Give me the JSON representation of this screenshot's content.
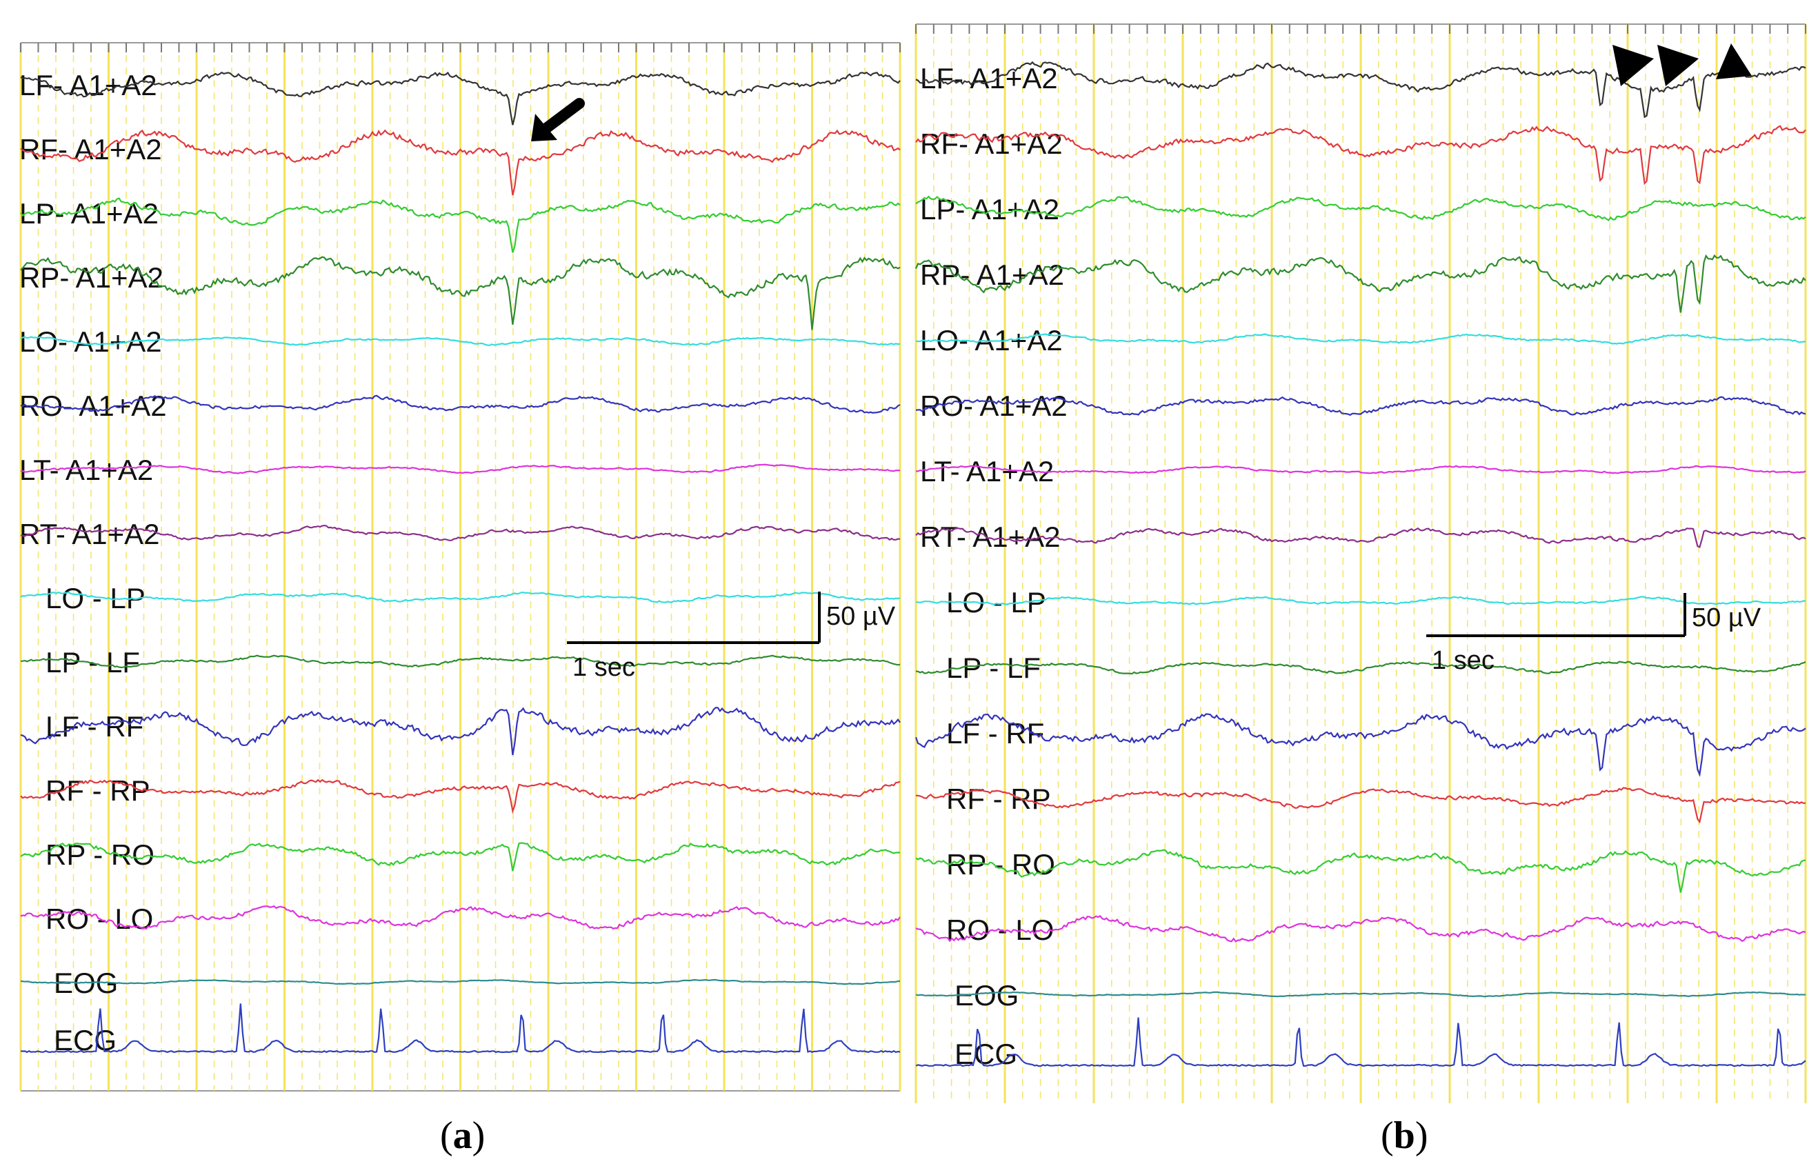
{
  "figure": {
    "panels": [
      {
        "caption": "a",
        "arrow_markers": 1,
        "scale_bar": {
          "time_label": "1 sec",
          "amplitude_label": "50 µV"
        },
        "channels": [
          {
            "label": "LF- A1+A2",
            "color": "#333333",
            "amp": 18,
            "seed": 1,
            "spikes": [
              0.56
            ]
          },
          {
            "label": "RF- A1+A2",
            "color": "#e0393e",
            "amp": 24,
            "seed": 2,
            "spikes": [
              0.56
            ]
          },
          {
            "label": "LP- A1+A2",
            "color": "#33cc33",
            "amp": 18,
            "seed": 3,
            "spikes": [
              0.56
            ]
          },
          {
            "label": "RP- A1+A2",
            "color": "#2e8b2e",
            "amp": 28,
            "seed": 4,
            "spikes": [
              0.56,
              0.9
            ]
          },
          {
            "label": "LO- A1+A2",
            "color": "#33dddd",
            "amp": 6,
            "seed": 5,
            "spikes": []
          },
          {
            "label": "RO- A1+A2",
            "color": "#3333bb",
            "amp": 12,
            "seed": 6,
            "spikes": []
          },
          {
            "label": "LT- A1+A2",
            "color": "#dd33dd",
            "amp": 6,
            "seed": 7,
            "spikes": []
          },
          {
            "label": "RT- A1+A2",
            "color": "#8a2e8a",
            "amp": 10,
            "seed": 8,
            "spikes": []
          },
          {
            "label": "LO - LP",
            "color": "#33dddd",
            "amp": 7,
            "seed": 9,
            "spikes": []
          },
          {
            "label": "LP - LF",
            "color": "#2e8b2e",
            "amp": 8,
            "seed": 10,
            "spikes": []
          },
          {
            "label": "LF - RF",
            "color": "#3333bb",
            "amp": 26,
            "seed": 11,
            "spikes": [
              0.56
            ]
          },
          {
            "label": "RF - RP",
            "color": "#e0393e",
            "amp": 14,
            "seed": 12,
            "spikes": [
              0.56
            ]
          },
          {
            "label": "RP - RO",
            "color": "#33cc33",
            "amp": 16,
            "seed": 13,
            "spikes": [
              0.56
            ]
          },
          {
            "label": "RO - LO",
            "color": "#dd33dd",
            "amp": 16,
            "seed": 14,
            "spikes": []
          },
          {
            "label": "EOG",
            "color": "#2e8b8b",
            "amp": 3,
            "seed": 15,
            "spikes": []
          },
          {
            "label": "ECG",
            "color": "#2e3fbf",
            "amp": 0,
            "seed": 16,
            "ecg": true,
            "spikes": []
          }
        ]
      },
      {
        "caption": "b",
        "arrow_markers": 3,
        "scale_bar": {
          "time_label": "1 sec",
          "amplitude_label": "50 µV"
        },
        "channels": [
          {
            "label": "LF- A1+A2",
            "color": "#333333",
            "amp": 20,
            "seed": 21,
            "spikes": [
              0.77,
              0.82,
              0.88
            ]
          },
          {
            "label": "RF- A1+A2",
            "color": "#e0393e",
            "amp": 22,
            "seed": 22,
            "spikes": [
              0.77,
              0.82,
              0.88
            ]
          },
          {
            "label": "LP- A1+A2",
            "color": "#33cc33",
            "amp": 16,
            "seed": 23,
            "spikes": []
          },
          {
            "label": "RP- A1+A2",
            "color": "#2e8b2e",
            "amp": 26,
            "seed": 24,
            "spikes": [
              0.86,
              0.88
            ]
          },
          {
            "label": "LO- A1+A2",
            "color": "#33dddd",
            "amp": 7,
            "seed": 25,
            "spikes": []
          },
          {
            "label": "RO- A1+A2",
            "color": "#3333bb",
            "amp": 14,
            "seed": 26,
            "spikes": []
          },
          {
            "label": "LT- A1+A2",
            "color": "#dd33dd",
            "amp": 6,
            "seed": 27,
            "spikes": []
          },
          {
            "label": "RT- A1+A2",
            "color": "#8a2e8a",
            "amp": 12,
            "seed": 28,
            "spikes": [
              0.88
            ]
          },
          {
            "label": "LO - LP",
            "color": "#33dddd",
            "amp": 6,
            "seed": 29,
            "spikes": []
          },
          {
            "label": "LP - LF",
            "color": "#2e8b2e",
            "amp": 9,
            "seed": 30,
            "spikes": []
          },
          {
            "label": "LF - RF",
            "color": "#3333bb",
            "amp": 26,
            "seed": 31,
            "spikes": [
              0.77,
              0.88
            ]
          },
          {
            "label": "RF - RP",
            "color": "#e0393e",
            "amp": 14,
            "seed": 32,
            "spikes": [
              0.88
            ]
          },
          {
            "label": "RP - RO",
            "color": "#33cc33",
            "amp": 18,
            "seed": 33,
            "spikes": [
              0.86
            ]
          },
          {
            "label": "RO - LO",
            "color": "#dd33dd",
            "amp": 18,
            "seed": 34,
            "spikes": []
          },
          {
            "label": "EOG",
            "color": "#2e8b8b",
            "amp": 3,
            "seed": 35,
            "spikes": []
          },
          {
            "label": "ECG",
            "color": "#2e3fbf",
            "amp": 0,
            "seed": 36,
            "ecg": true,
            "spikes": []
          }
        ]
      }
    ]
  }
}
